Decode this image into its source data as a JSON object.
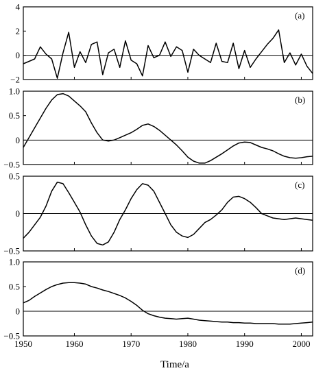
{
  "figure": {
    "xlabel": "Time/a"
  },
  "chart_data": [
    {
      "type": "line",
      "panel_label": "(a)",
      "title": "",
      "xlabel": "",
      "ylabel": "",
      "xlim": [
        1951,
        2002
      ],
      "ylim": [
        -2,
        4
      ],
      "yticks": [
        -2,
        0,
        2,
        4
      ],
      "ytick_labels": [
        "−2",
        "0",
        "2",
        "4"
      ],
      "zero_line": true,
      "series": [
        {
          "x": [
            1951,
            1952,
            1953,
            1954,
            1955,
            1956,
            1957,
            1958,
            1959,
            1960,
            1961,
            1962,
            1963,
            1964,
            1965,
            1966,
            1967,
            1968,
            1969,
            1970,
            1971,
            1972,
            1973,
            1974,
            1975,
            1976,
            1977,
            1978,
            1979,
            1980,
            1981,
            1982,
            1983,
            1984,
            1985,
            1986,
            1987,
            1988,
            1989,
            1990,
            1991,
            1992,
            1993,
            1994,
            1995,
            1996,
            1997,
            1998,
            1999,
            2000,
            2001,
            2002
          ],
          "y": [
            -0.7,
            -0.5,
            -0.3,
            0.7,
            0.1,
            -0.3,
            -1.9,
            0.2,
            1.9,
            -1.0,
            0.3,
            -0.6,
            0.9,
            1.1,
            -1.6,
            0.2,
            0.5,
            -1.0,
            1.2,
            -0.4,
            -0.7,
            -1.7,
            0.8,
            -0.2,
            0.0,
            1.1,
            -0.1,
            0.7,
            0.4,
            -1.4,
            0.5,
            0.0,
            -0.3,
            -0.6,
            1.0,
            -0.5,
            -0.6,
            1.0,
            -1.1,
            0.4,
            -1.0,
            -0.3,
            0.3,
            0.9,
            1.4,
            2.1,
            -0.6,
            0.2,
            -0.8,
            0.1,
            -0.9,
            -1.5
          ]
        }
      ]
    },
    {
      "type": "line",
      "panel_label": "(b)",
      "title": "",
      "xlabel": "",
      "ylabel": "",
      "xlim": [
        1951,
        2002
      ],
      "ylim": [
        -0.5,
        1.0
      ],
      "yticks": [
        -0.5,
        0,
        0.5,
        1.0
      ],
      "ytick_labels": [
        "−0.5",
        "0",
        "0.5",
        "1.0"
      ],
      "zero_line": true,
      "series": [
        {
          "x": [
            1951,
            1952,
            1953,
            1954,
            1955,
            1956,
            1957,
            1958,
            1959,
            1960,
            1961,
            1962,
            1963,
            1964,
            1965,
            1966,
            1967,
            1968,
            1969,
            1970,
            1971,
            1972,
            1973,
            1974,
            1975,
            1976,
            1977,
            1978,
            1979,
            1980,
            1981,
            1982,
            1983,
            1984,
            1985,
            1986,
            1987,
            1988,
            1989,
            1990,
            1991,
            1992,
            1993,
            1994,
            1995,
            1996,
            1997,
            1998,
            1999,
            2000,
            2001,
            2002
          ],
          "y": [
            -0.15,
            0.05,
            0.25,
            0.45,
            0.65,
            0.82,
            0.93,
            0.95,
            0.9,
            0.8,
            0.7,
            0.58,
            0.35,
            0.15,
            0.0,
            -0.02,
            0.0,
            0.05,
            0.1,
            0.15,
            0.22,
            0.3,
            0.33,
            0.28,
            0.2,
            0.1,
            0.0,
            -0.1,
            -0.22,
            -0.35,
            -0.43,
            -0.47,
            -0.47,
            -0.42,
            -0.35,
            -0.28,
            -0.2,
            -0.12,
            -0.06,
            -0.04,
            -0.05,
            -0.1,
            -0.15,
            -0.18,
            -0.22,
            -0.28,
            -0.33,
            -0.36,
            -0.37,
            -0.36,
            -0.34,
            -0.33
          ]
        }
      ]
    },
    {
      "type": "line",
      "panel_label": "(c)",
      "title": "",
      "xlabel": "",
      "ylabel": "",
      "xlim": [
        1951,
        2002
      ],
      "ylim": [
        -0.5,
        0.5
      ],
      "yticks": [
        -0.5,
        0,
        0.5
      ],
      "ytick_labels": [
        "−0.5",
        "0",
        "0.5"
      ],
      "zero_line": true,
      "series": [
        {
          "x": [
            1951,
            1952,
            1953,
            1954,
            1955,
            1956,
            1957,
            1958,
            1959,
            1960,
            1961,
            1962,
            1963,
            1964,
            1965,
            1966,
            1967,
            1968,
            1969,
            1970,
            1971,
            1972,
            1973,
            1974,
            1975,
            1976,
            1977,
            1978,
            1979,
            1980,
            1981,
            1982,
            1983,
            1984,
            1985,
            1986,
            1987,
            1988,
            1989,
            1990,
            1991,
            1992,
            1993,
            1994,
            1995,
            1996,
            1997,
            1998,
            1999,
            2000,
            2001,
            2002
          ],
          "y": [
            -0.33,
            -0.25,
            -0.15,
            -0.05,
            0.1,
            0.3,
            0.42,
            0.4,
            0.28,
            0.15,
            0.02,
            -0.15,
            -0.3,
            -0.4,
            -0.42,
            -0.38,
            -0.25,
            -0.08,
            0.05,
            0.2,
            0.32,
            0.4,
            0.38,
            0.3,
            0.15,
            0.0,
            -0.15,
            -0.25,
            -0.3,
            -0.32,
            -0.28,
            -0.2,
            -0.12,
            -0.08,
            -0.02,
            0.05,
            0.15,
            0.22,
            0.23,
            0.2,
            0.15,
            0.08,
            0.0,
            -0.03,
            -0.06,
            -0.07,
            -0.08,
            -0.07,
            -0.06,
            -0.07,
            -0.08,
            -0.09
          ]
        }
      ]
    },
    {
      "type": "line",
      "panel_label": "(d)",
      "title": "",
      "xlabel": "",
      "ylabel": "",
      "xlim": [
        1951,
        2002
      ],
      "ylim": [
        -0.5,
        1.0
      ],
      "yticks": [
        -0.5,
        0,
        0.5,
        1.0
      ],
      "ytick_labels": [
        "−0.5",
        "0",
        "0.5",
        "1.0"
      ],
      "xticks": [
        1950,
        1960,
        1970,
        1980,
        1990,
        2000
      ],
      "xtick_labels": [
        "1950",
        "1960",
        "1970",
        "1980",
        "1990",
        "2000"
      ],
      "zero_line": true,
      "series": [
        {
          "x": [
            1951,
            1952,
            1953,
            1954,
            1955,
            1956,
            1957,
            1958,
            1959,
            1960,
            1961,
            1962,
            1963,
            1964,
            1965,
            1966,
            1967,
            1968,
            1969,
            1970,
            1971,
            1972,
            1973,
            1974,
            1975,
            1976,
            1977,
            1978,
            1979,
            1980,
            1981,
            1982,
            1983,
            1984,
            1985,
            1986,
            1987,
            1988,
            1989,
            1990,
            1991,
            1992,
            1993,
            1994,
            1995,
            1996,
            1997,
            1998,
            1999,
            2000,
            2001,
            2002
          ],
          "y": [
            0.17,
            0.22,
            0.3,
            0.37,
            0.44,
            0.5,
            0.54,
            0.57,
            0.58,
            0.58,
            0.57,
            0.55,
            0.5,
            0.47,
            0.43,
            0.4,
            0.36,
            0.32,
            0.27,
            0.2,
            0.12,
            0.02,
            -0.05,
            -0.09,
            -0.12,
            -0.14,
            -0.15,
            -0.16,
            -0.15,
            -0.14,
            -0.16,
            -0.18,
            -0.19,
            -0.2,
            -0.21,
            -0.22,
            -0.22,
            -0.23,
            -0.23,
            -0.24,
            -0.24,
            -0.25,
            -0.25,
            -0.25,
            -0.25,
            -0.26,
            -0.26,
            -0.26,
            -0.25,
            -0.24,
            -0.23,
            -0.22
          ]
        }
      ]
    }
  ]
}
